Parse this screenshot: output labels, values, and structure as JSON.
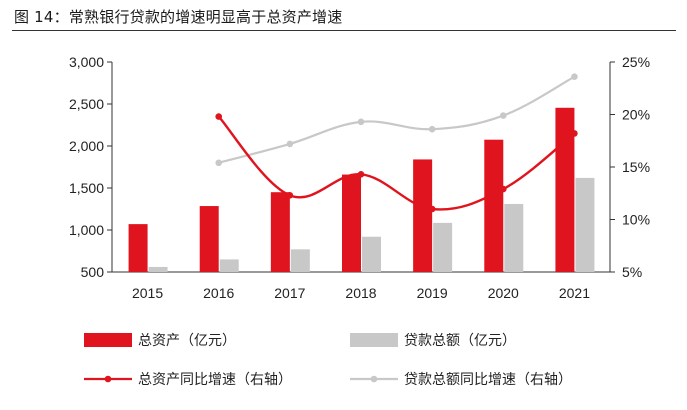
{
  "figure_title": "图 14：常熟银行贷款的增速明显高于总资产增速",
  "chart_data": {
    "type": "bar+line",
    "title": "",
    "categories": [
      "2015",
      "2016",
      "2017",
      "2018",
      "2019",
      "2020",
      "2021"
    ],
    "series": [
      {
        "name": "总资产（亿元）",
        "type": "bar",
        "axis": "left",
        "color": "#e0141e",
        "values": [
          1070,
          1285,
          1450,
          1660,
          1840,
          2075,
          2455
        ]
      },
      {
        "name": "贷款总额（亿元）",
        "type": "bar",
        "axis": "left",
        "color": "#c8c8c8",
        "values": [
          560,
          650,
          770,
          920,
          1085,
          1310,
          1620
        ]
      },
      {
        "name": "总资产同比增速（右轴）",
        "type": "line",
        "axis": "right",
        "color": "#e0141e",
        "marker": "circle",
        "values": [
          null,
          19.8,
          12.3,
          14.3,
          11.0,
          12.9,
          18.2
        ]
      },
      {
        "name": "贷款总额同比增速（右轴）",
        "type": "line",
        "axis": "right",
        "color": "#c8c8c8",
        "marker": "circle",
        "values": [
          null,
          15.4,
          17.2,
          19.3,
          18.6,
          19.9,
          23.6
        ]
      }
    ],
    "y_left": {
      "min": 500,
      "max": 3000,
      "ticks": [
        "500",
        "1,000",
        "1,500",
        "2,000",
        "2,500",
        "3,000"
      ]
    },
    "y_right": {
      "min": 5,
      "max": 25,
      "ticks": [
        "5%",
        "10%",
        "15%",
        "20%",
        "25%"
      ]
    },
    "grid": false,
    "legend_position": "bottom"
  }
}
